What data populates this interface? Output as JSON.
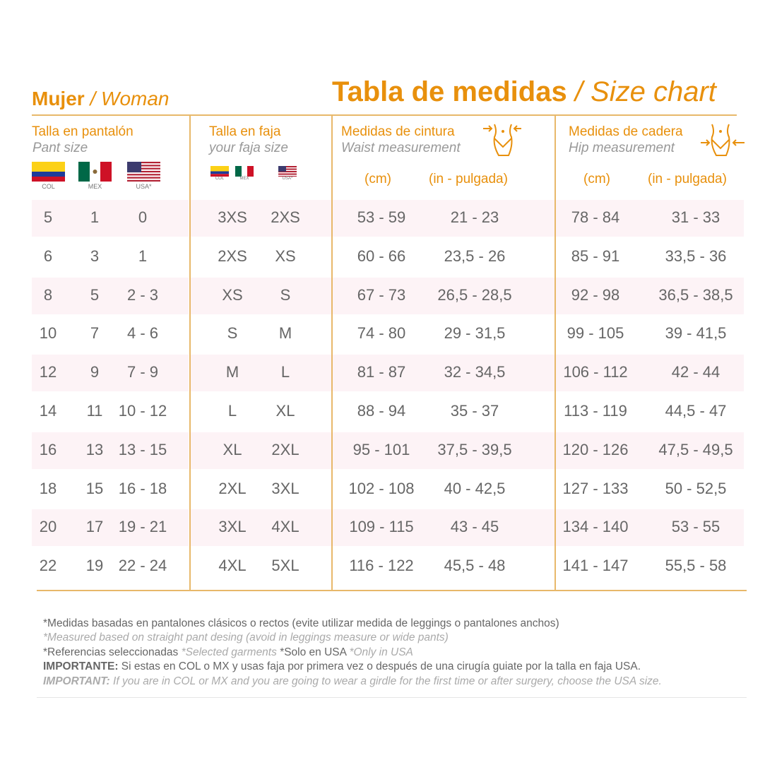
{
  "header": {
    "mujer": "Mujer",
    "woman": "/ Woman",
    "title": "Tabla de medidas",
    "title_en": "/ Size chart"
  },
  "colors": {
    "accent": "#e8900c",
    "stripe": "#fdf3f6"
  },
  "columns": {
    "pant": {
      "es": "Talla en pantalón",
      "en": "Pant size",
      "flags": [
        "COL",
        "MEX",
        "USA*"
      ]
    },
    "faja": {
      "es": "Talla en faja",
      "en": "your faja size",
      "flags": [
        "COL",
        "MEX",
        "USA*"
      ]
    },
    "waist": {
      "es": "Medidas de cintura",
      "en": "Waist measurement",
      "icon": "waist-body-icon",
      "units": [
        "(cm)",
        "(in - pulgada)"
      ]
    },
    "hip": {
      "es": "Medidas de cadera",
      "en": "Hip measurement",
      "icon": "hip-body-icon",
      "units": [
        "(cm)",
        "(in - pulgada)"
      ]
    }
  },
  "rows": [
    [
      "5",
      "1",
      "0",
      "3XS",
      "2XS",
      "53 - 59",
      "21 - 23",
      "78 - 84",
      "31 - 33"
    ],
    [
      "6",
      "3",
      "1",
      "2XS",
      "XS",
      "60 - 66",
      "23,5 - 26",
      "85 - 91",
      "33,5 - 36"
    ],
    [
      "8",
      "5",
      "2 - 3",
      "XS",
      "S",
      "67 - 73",
      "26,5 - 28,5",
      "92 - 98",
      "36,5 - 38,5"
    ],
    [
      "10",
      "7",
      "4 - 6",
      "S",
      "M",
      "74 - 80",
      "29 - 31,5",
      "99 - 105",
      "39 - 41,5"
    ],
    [
      "12",
      "9",
      "7 - 9",
      "M",
      "L",
      "81 - 87",
      "32 - 34,5",
      "106 - 112",
      "42 - 44"
    ],
    [
      "14",
      "11",
      "10 - 12",
      "L",
      "XL",
      "88 - 94",
      "35 - 37",
      "113 - 119",
      "44,5 - 47"
    ],
    [
      "16",
      "13",
      "13 - 15",
      "XL",
      "2XL",
      "95 - 101",
      "37,5 - 39,5",
      "120 - 126",
      "47,5 - 49,5"
    ],
    [
      "18",
      "15",
      "16 - 18",
      "2XL",
      "3XL",
      "102 - 108",
      "40 - 42,5",
      "127 - 133",
      "50 - 52,5"
    ],
    [
      "20",
      "17",
      "19 - 21",
      "3XL",
      "4XL",
      "109 - 115",
      "43 - 45",
      "134 - 140",
      "53 - 55"
    ],
    [
      "22",
      "19",
      "22 - 24",
      "4XL",
      "5XL",
      "116 - 122",
      "45,5 - 48",
      "141 - 147",
      "55,5 - 58"
    ]
  ],
  "footer": {
    "l1": "*Medidas basadas en pantalones clásicos o rectos (evite utilizar medida de leggings o pantalones anchos)",
    "l2": "*Measured based on straight pant desing (avoid in leggings measure or wide pants)",
    "l3a": "*Referencias seleccionadas",
    "l3b": "*Selected garments",
    "l3c": "*Solo en USA",
    "l3d": "*Only in USA",
    "l4b": "IMPORTANTE:",
    "l4": " Si estas en COL o MX y usas faja por primera vez o después de una cirugía guiate por la talla en faja USA.",
    "l5b": "IMPORTANT:",
    "l5": " If you are in COL or MX and you are going to wear a girdle for the first time or after surgery, choose the USA size."
  }
}
